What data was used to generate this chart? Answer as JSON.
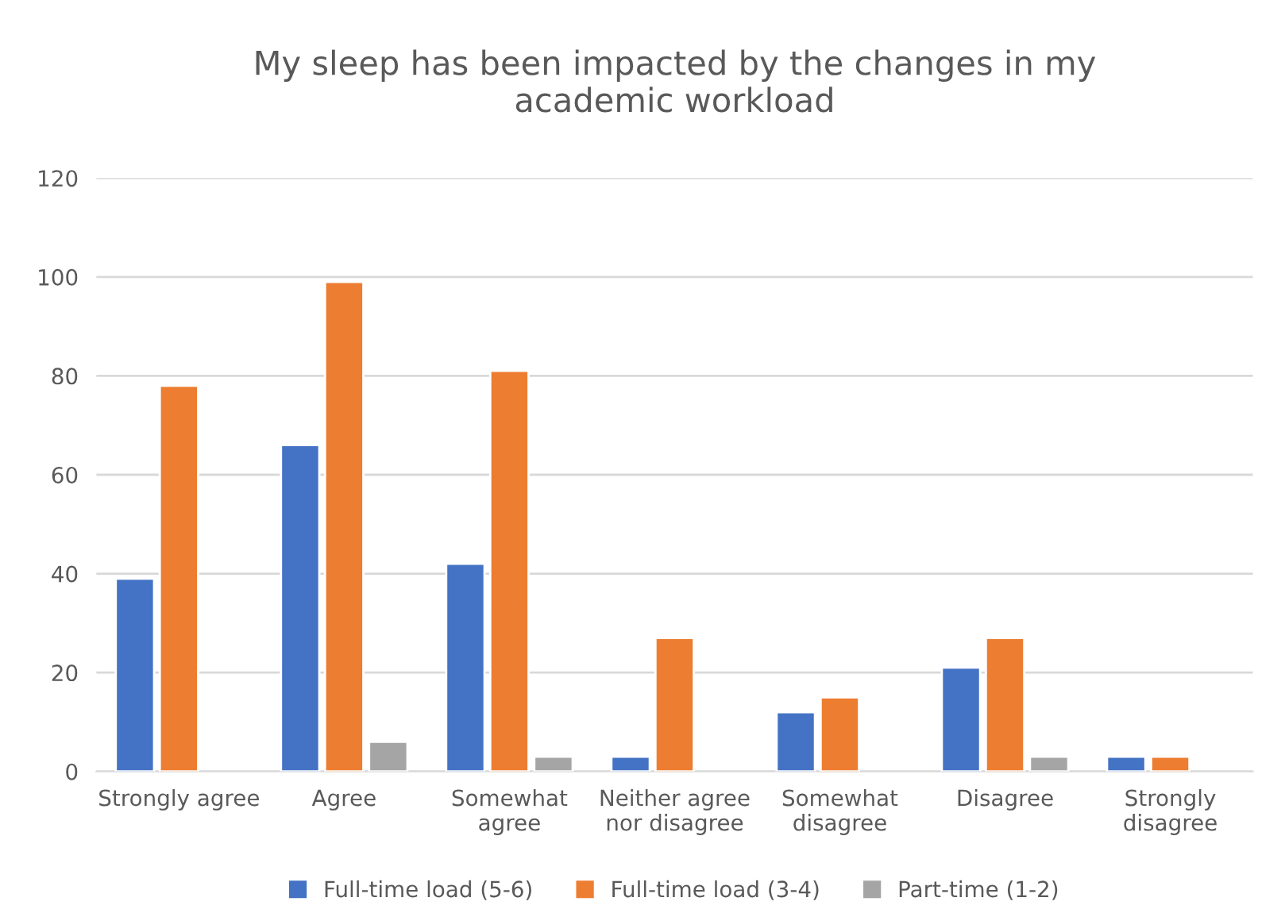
{
  "chart_data": {
    "type": "bar",
    "title": "My sleep has been impacted by the changes in my\nacademic workload",
    "categories": [
      "Strongly agree",
      "Agree",
      "Somewhat\nagree",
      "Neither agree\nnor disagree",
      "Somewhat\ndisagree",
      "Disagree",
      "Strongly\ndisagree"
    ],
    "series": [
      {
        "name": "Full-time load (5-6)",
        "color": "#4472c4",
        "values": [
          39,
          66,
          42,
          3,
          12,
          21,
          3
        ]
      },
      {
        "name": "Full-time load (3-4)",
        "color": "#ed7d31",
        "values": [
          78,
          99,
          81,
          27,
          15,
          27,
          3
        ]
      },
      {
        "name": "Part-time (1-2)",
        "color": "#a5a5a5",
        "values": [
          null,
          6,
          3,
          null,
          null,
          3,
          null
        ]
      }
    ],
    "ylim": [
      0,
      120
    ],
    "yticks": [
      0,
      20,
      40,
      60,
      80,
      100,
      120
    ],
    "grid": "y",
    "legend": "bottom"
  }
}
